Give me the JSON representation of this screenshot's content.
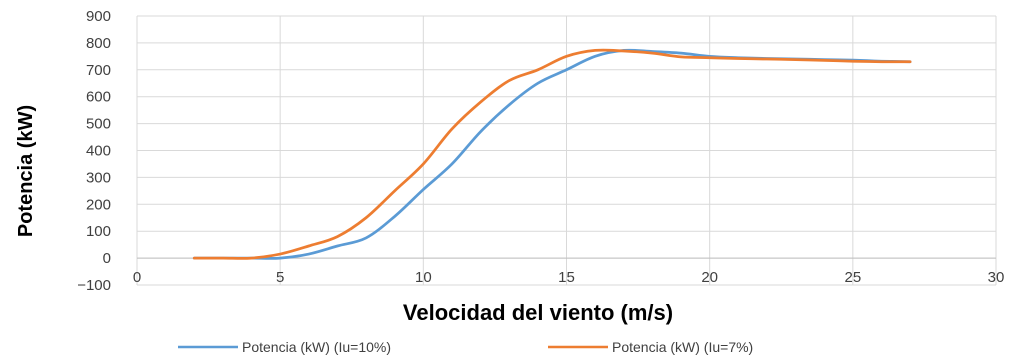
{
  "chart_data": {
    "type": "line",
    "title": "",
    "xlabel": "Velocidad del viento (m/s)",
    "ylabel": "Potencia (kW)",
    "xlim": [
      0,
      30
    ],
    "ylim": [
      -100,
      900
    ],
    "xticks": [
      0,
      5,
      10,
      15,
      20,
      25,
      30
    ],
    "yticks": [
      -100,
      0,
      100,
      200,
      300,
      400,
      500,
      600,
      700,
      800,
      900
    ],
    "grid": true,
    "legend_position": "bottom",
    "series": [
      {
        "name": "Potencia (kW) (Iu=10%)",
        "color": "#5b9bd5",
        "x": [
          2,
          3,
          4,
          5,
          6,
          7,
          8,
          9,
          10,
          11,
          12,
          13,
          14,
          15,
          16,
          17,
          18,
          19,
          20,
          21,
          22,
          23,
          24,
          25,
          26,
          27
        ],
        "y": [
          0,
          0,
          0,
          0,
          15,
          45,
          75,
          155,
          255,
          350,
          470,
          570,
          650,
          700,
          750,
          772,
          768,
          762,
          750,
          745,
          742,
          740,
          738,
          736,
          732,
          730
        ]
      },
      {
        "name": "Potencia (kW) (Iu=7%)",
        "color": "#ed7d31",
        "x": [
          2,
          3,
          4,
          5,
          6,
          7,
          8,
          9,
          10,
          11,
          12,
          13,
          14,
          15,
          16,
          17,
          18,
          19,
          20,
          21,
          22,
          23,
          24,
          25,
          26,
          27
        ],
        "y": [
          0,
          0,
          0,
          15,
          45,
          80,
          150,
          250,
          350,
          480,
          580,
          660,
          700,
          750,
          772,
          770,
          762,
          748,
          745,
          742,
          740,
          738,
          735,
          732,
          730,
          730
        ]
      }
    ]
  }
}
